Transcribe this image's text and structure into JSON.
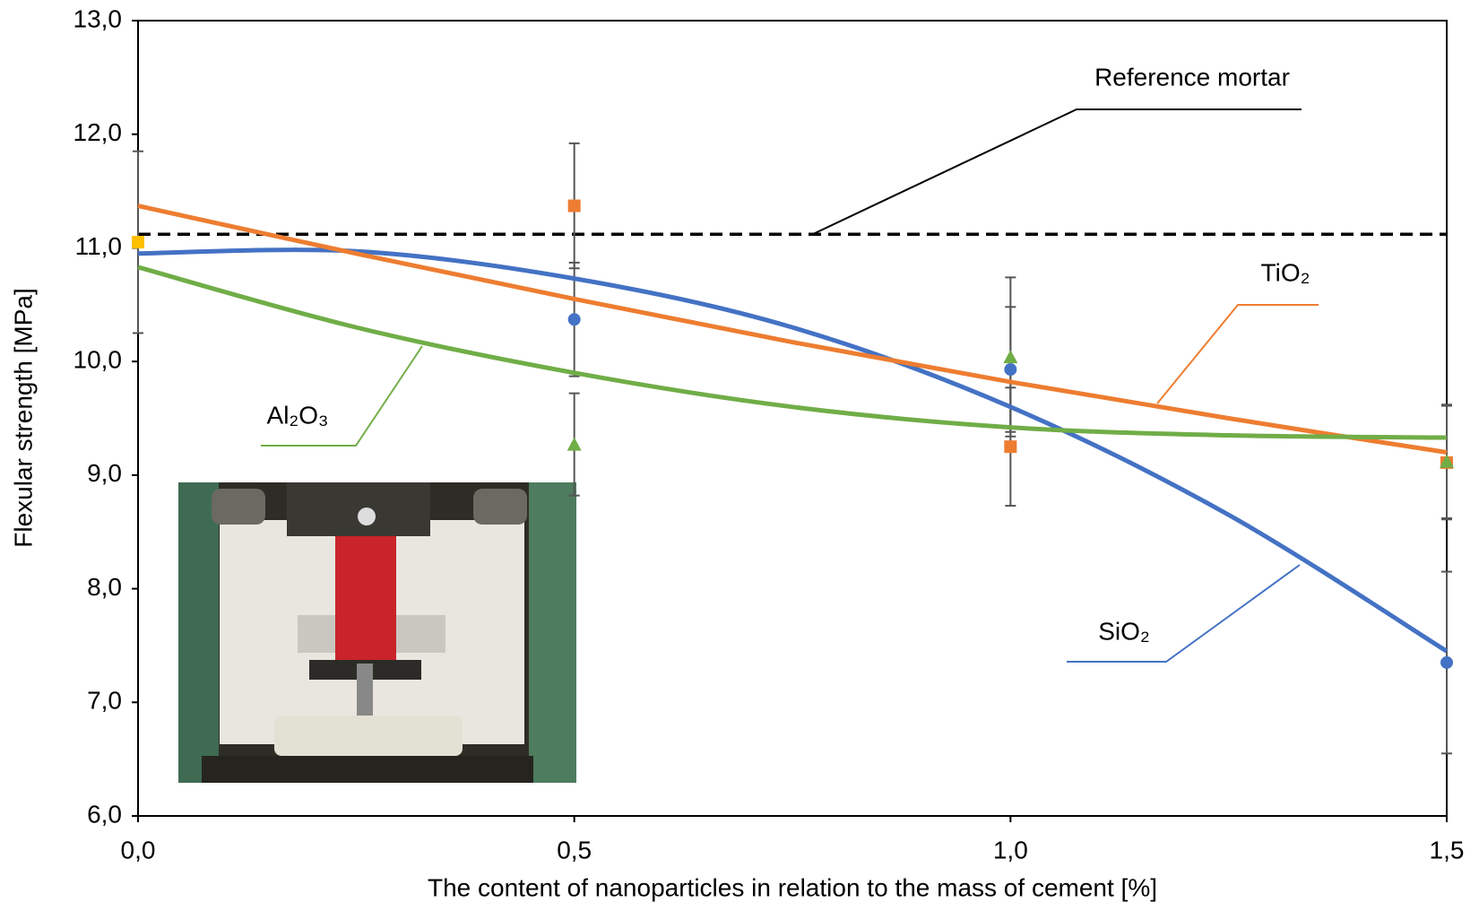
{
  "chart_data": {
    "type": "scatter",
    "x_label": "The content of nanoparticles in relation to the mass of cement  [%]",
    "y_label": "Flexular  strength [MPa]",
    "xlim": [
      0,
      1.5
    ],
    "ylim": [
      6,
      13
    ],
    "xticks": [
      {
        "value": 0,
        "label": "0,0"
      },
      {
        "value": 0.5,
        "label": "0,5"
      },
      {
        "value": 1,
        "label": "1,0"
      },
      {
        "value": 1.5,
        "label": "1,5"
      }
    ],
    "yticks": [
      {
        "value": 6,
        "label": "6,0"
      },
      {
        "value": 7,
        "label": "7,0"
      },
      {
        "value": 8,
        "label": "8,0"
      },
      {
        "value": 9,
        "label": "9,0"
      },
      {
        "value": 10,
        "label": "10,0"
      },
      {
        "value": 11,
        "label": "11,0"
      },
      {
        "value": 12,
        "label": "12,0"
      },
      {
        "value": 13,
        "label": "13,0"
      }
    ],
    "reference": {
      "label": "Reference mortar",
      "x": 0,
      "value": 11.05,
      "error": 0.8,
      "line": 11.12,
      "color": "#ffc000"
    },
    "series": [
      {
        "name": "SiO₂",
        "color": "#4472c4",
        "marker": "circle",
        "x": [
          0.5,
          1,
          1.5
        ],
        "values": [
          10.37,
          9.93,
          7.35
        ],
        "errors": [
          0.5,
          0.55,
          0.8
        ],
        "trend": {
          "x": [
            0,
            0.25,
            0.5,
            0.75,
            1,
            1.25,
            1.5
          ],
          "values": [
            10.95,
            10.97,
            10.73,
            10.3,
            9.6,
            8.65,
            7.45
          ]
        }
      },
      {
        "name": "TiO₂",
        "color": "#ed7d31",
        "marker": "square",
        "x": [
          0.5,
          1,
          1.5
        ],
        "values": [
          11.37,
          9.25,
          9.11
        ],
        "errors": [
          0.55,
          0.52,
          0.5
        ],
        "trend": {
          "x": [
            0,
            0.25,
            0.5,
            0.75,
            1,
            1.25,
            1.5
          ],
          "values": [
            11.37,
            10.95,
            10.55,
            10.17,
            9.82,
            9.5,
            9.2
          ]
        }
      },
      {
        "name": "Al₂O₃",
        "color": "#70ad47",
        "marker": "triangle",
        "x": [
          0.5,
          1,
          1.5
        ],
        "values": [
          9.27,
          10.04,
          9.12
        ],
        "errors": [
          0.45,
          0.7,
          0.5
        ],
        "trend": {
          "x": [
            0,
            0.25,
            0.5,
            0.75,
            1,
            1.25,
            1.5
          ],
          "values": [
            10.83,
            10.3,
            9.9,
            9.6,
            9.42,
            9.35,
            9.33
          ]
        }
      }
    ]
  }
}
